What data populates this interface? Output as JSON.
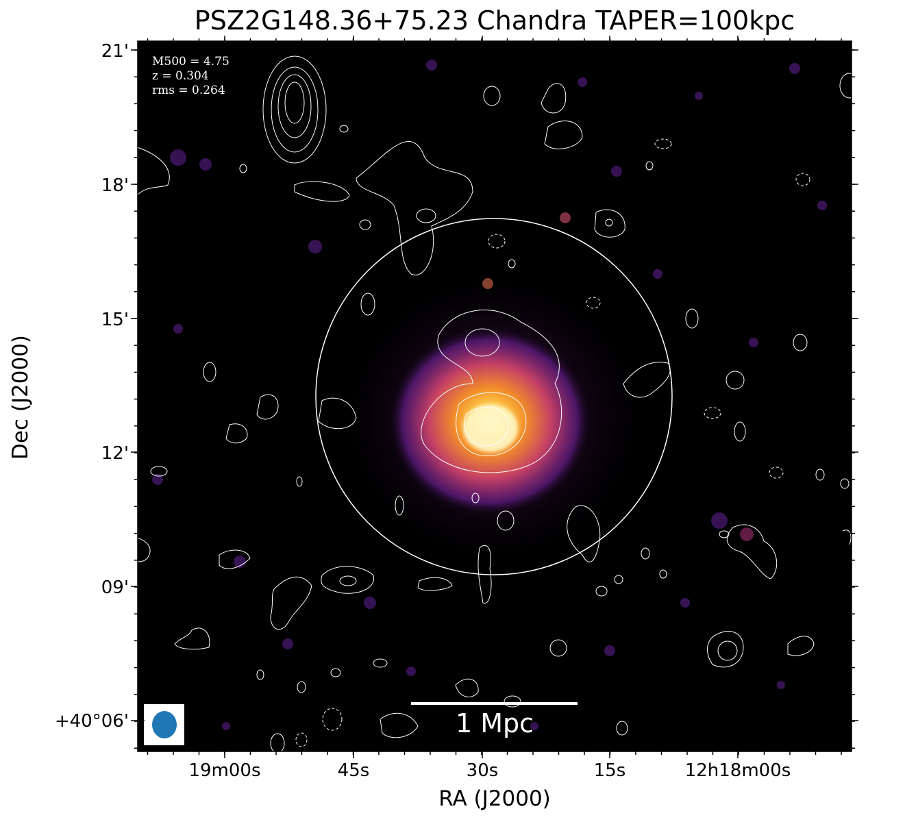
{
  "figure": {
    "title": "PSZ2G148.36+75.23 Chandra TAPER=100kpc",
    "xlabel": "RA (J2000)",
    "ylabel": "Dec (J2000)",
    "xticks": [
      "19m00s",
      "45s",
      "30s",
      "15s",
      "12h18m00s"
    ],
    "yticks": [
      "21'",
      "18'",
      "15'",
      "12'",
      "09'",
      "+40°06'"
    ],
    "info": {
      "m500": "M500 = 4.75",
      "z": "z = 0.304",
      "rms": "rms = 0.264"
    },
    "scale_bar": "1 Mpc",
    "colors": {
      "background": "#000000",
      "emission_core": "#fffbd0",
      "emission_mid": "#f28c2a",
      "emission_outer": "#8a1f8f",
      "contours": "#ffffff",
      "beam": "#1f77b4"
    },
    "colormap": "inferno-like",
    "contour_color": "white"
  }
}
